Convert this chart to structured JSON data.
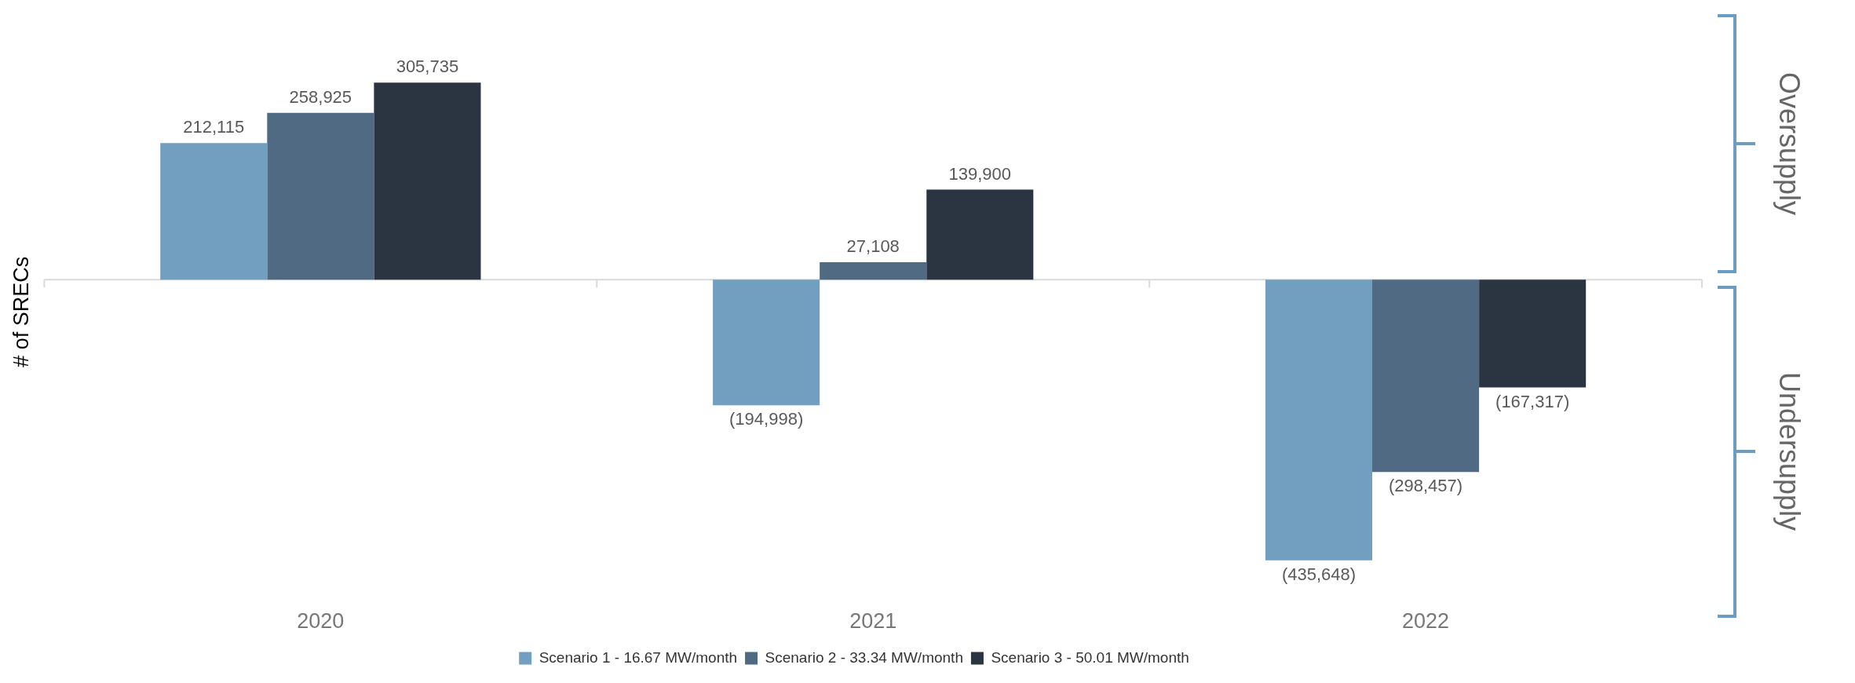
{
  "chart_data": {
    "type": "bar",
    "ylabel": "# of SRECs",
    "categories": [
      "2020",
      "2021",
      "2022"
    ],
    "series": [
      {
        "name": "Scenario 1 - 16.67 MW/month",
        "color": "#729fbf",
        "values": [
          212115,
          -194998,
          -435648
        ],
        "value_labels": [
          "212,115",
          "(194,998)",
          "(435,648)"
        ]
      },
      {
        "name": "Scenario 2 - 33.34 MW/month",
        "color": "#4f6a82",
        "values": [
          258925,
          27108,
          -298457
        ],
        "value_labels": [
          "258,925",
          "27,108",
          "(298,457)"
        ]
      },
      {
        "name": "Scenario 3 - 50.01 MW/month",
        "color": "#2b3542",
        "values": [
          305735,
          139900,
          -167317
        ],
        "value_labels": [
          "305,735",
          "139,900",
          "(167,317)"
        ]
      }
    ],
    "tick_labels": "x",
    "grid": false,
    "legend": "bottom",
    "annotations": [
      "Oversupply",
      "Undersupply"
    ]
  }
}
